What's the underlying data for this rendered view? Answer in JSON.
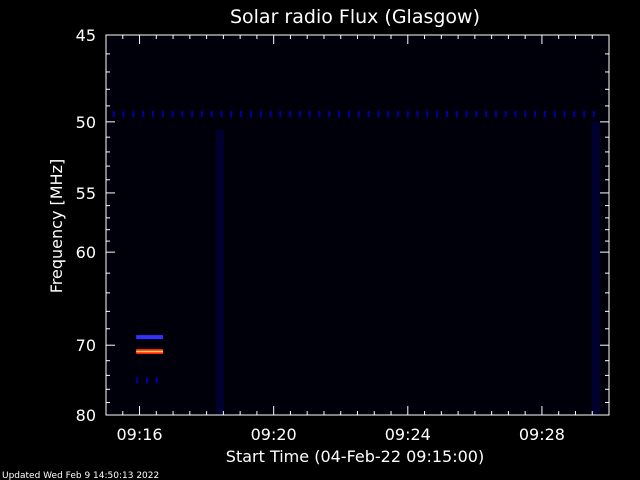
{
  "chart_data": {
    "type": "heatmap",
    "title": "Solar radio Flux (Glasgow)",
    "xlabel": "Start Time (04-Feb-22 09:15:00)",
    "ylabel": "Frequency [MHz]",
    "x_tick_labels": [
      "09:16",
      "09:20",
      "09:24",
      "09:28"
    ],
    "x_tick_minutes": [
      1,
      5,
      9,
      13
    ],
    "xlim_minutes": [
      0,
      15
    ],
    "y_tick_labels": [
      "45",
      "50",
      "55",
      "60",
      "70",
      "80"
    ],
    "y_tick_values": [
      45,
      50,
      55,
      60,
      70,
      80
    ],
    "ylim": [
      45,
      80
    ],
    "y_scale": "reciprocal",
    "colormap": [
      "#000000",
      "#000033",
      "#0000aa",
      "#3333ff",
      "#ff2200",
      "#ffcc66"
    ],
    "features": [
      {
        "kind": "horizontal-band",
        "freq": 49.5,
        "t_start": 0.2,
        "t_end": 14.8,
        "intensity": 0.45
      },
      {
        "kind": "horizontal-band",
        "freq": 69.0,
        "t_start": 0.9,
        "t_end": 1.7,
        "intensity": 0.6
      },
      {
        "kind": "horizontal-band",
        "freq": 70.8,
        "t_start": 0.9,
        "t_end": 1.7,
        "intensity": 1.0
      },
      {
        "kind": "horizontal-band",
        "freq": 74.7,
        "t_start": 0.9,
        "t_end": 1.7,
        "intensity": 0.45
      },
      {
        "kind": "vertical-streak",
        "time": 3.4,
        "f_start": 50.5,
        "f_end": 80,
        "intensity": 0.18
      },
      {
        "kind": "vertical-streak",
        "time": 14.6,
        "f_start": 50,
        "f_end": 80,
        "intensity": 0.2
      }
    ],
    "grid": false
  },
  "footer": {
    "updated": "Updated Wed Feb  9 14:50:13 2022"
  },
  "colors": {
    "background": "#000000",
    "foreground": "#ffffff",
    "plot_background": "#00000a"
  }
}
